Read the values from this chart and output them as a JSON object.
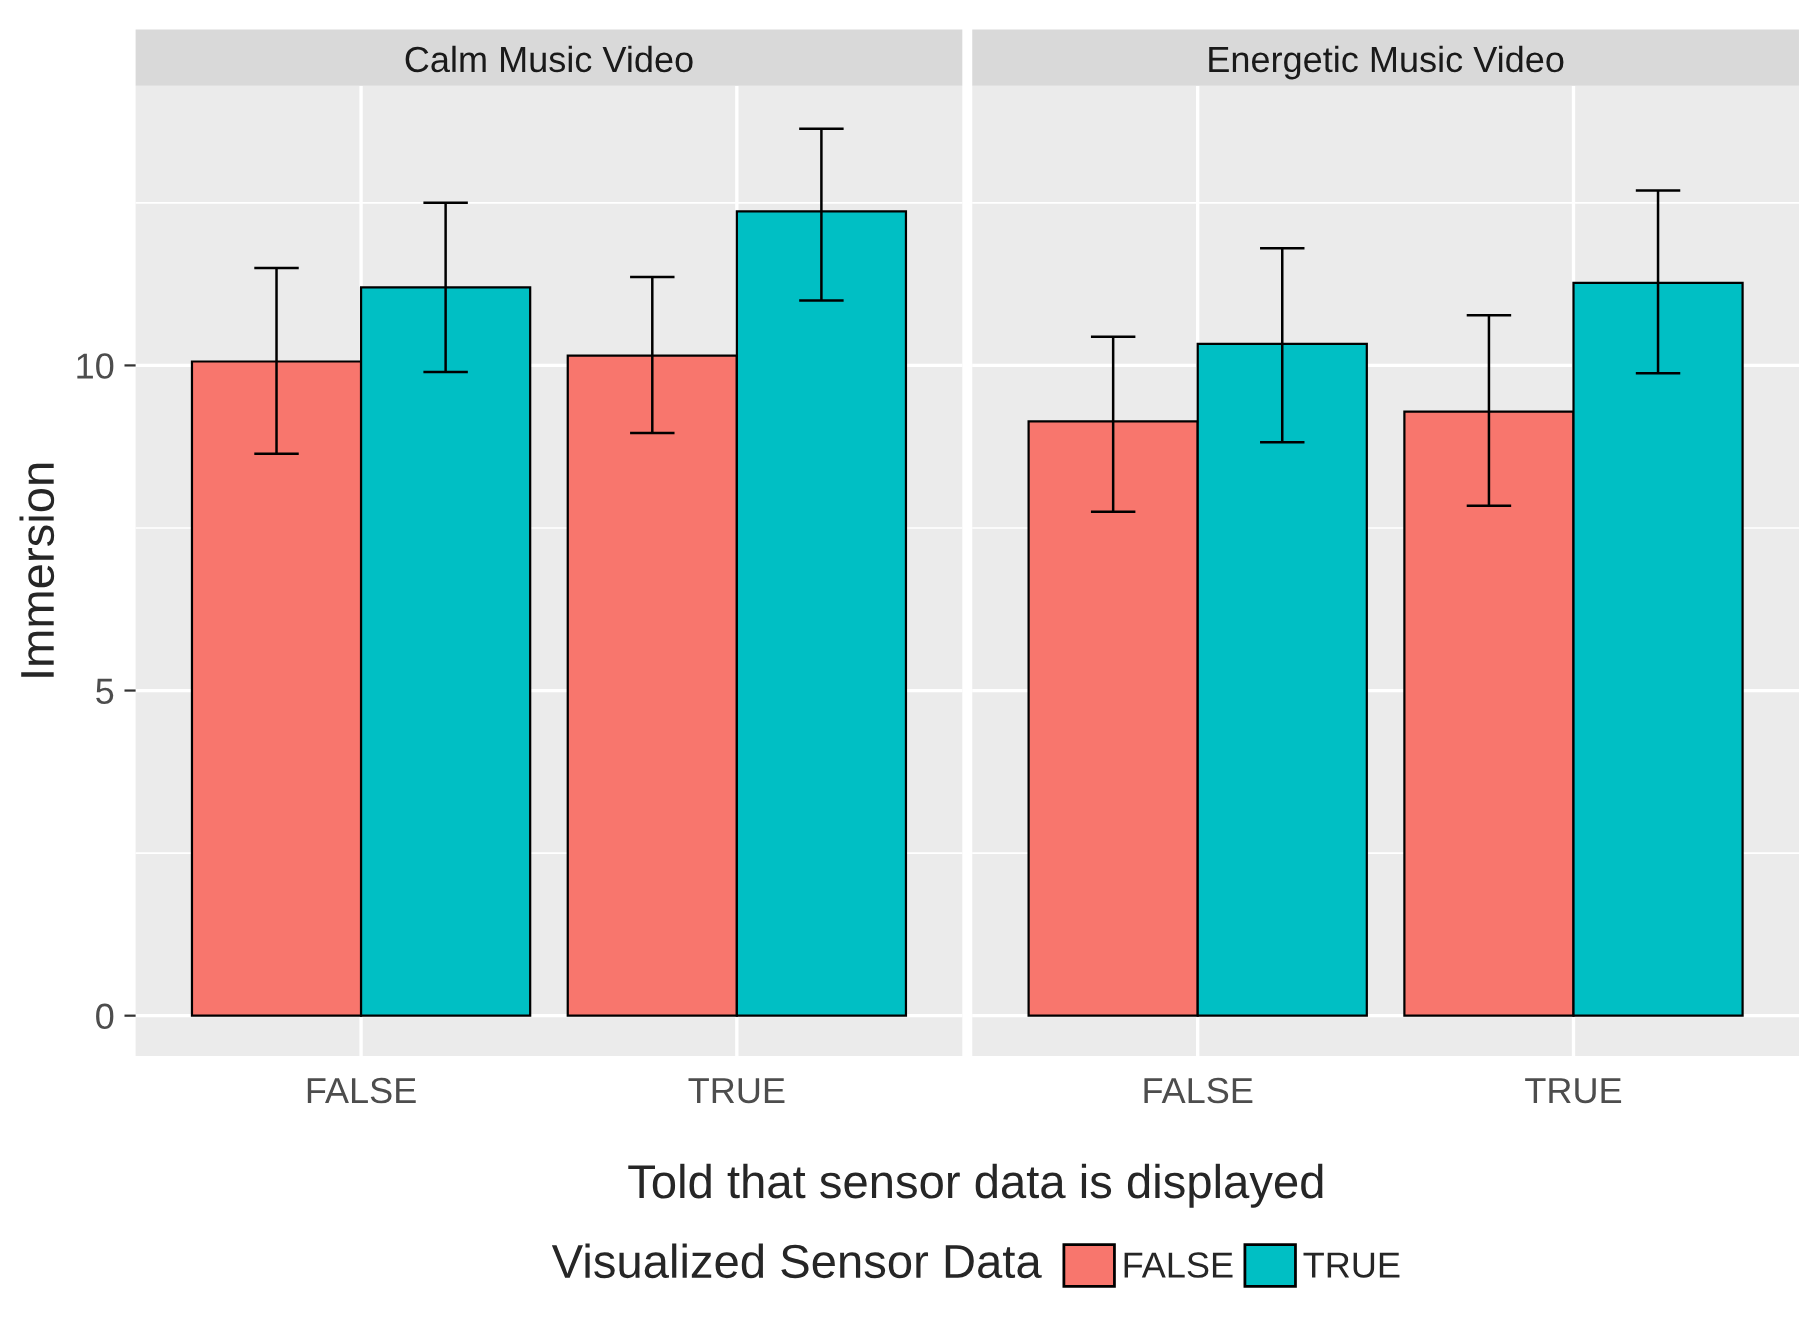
{
  "chart_data": [
    {
      "type": "bar",
      "title": "Calm Music Video",
      "xlabel": "Told that sensor data is displayed",
      "ylabel": "Immersion",
      "legend_title": "Visualized Sensor Data",
      "legend": "bottom",
      "grid": true,
      "categories": [
        "FALSE",
        "TRUE"
      ],
      "ylim": [
        -0.62,
        14.3
      ],
      "yticks": [
        0,
        5,
        10
      ],
      "series": [
        {
          "name": "FALSE",
          "color": "#f8766d",
          "values": [
            10.06,
            10.15
          ],
          "errors": [
            [
              8.64,
              11.5
            ],
            [
              8.96,
              11.36
            ]
          ]
        },
        {
          "name": "TRUE",
          "color": "#00bfc4",
          "values": [
            11.2,
            12.37
          ],
          "errors": [
            [
              9.9,
              12.5
            ],
            [
              11.0,
              13.64
            ]
          ]
        }
      ]
    },
    {
      "type": "bar",
      "title": "Energetic Music Video",
      "grid": true,
      "tick_labels": "x",
      "categories": [
        "FALSE",
        "TRUE"
      ],
      "ylim": [
        -0.62,
        14.3
      ],
      "yticks": [
        0,
        5,
        10
      ],
      "series": [
        {
          "color": "#f8766d",
          "values": [
            9.14,
            9.29
          ],
          "errors": [
            [
              7.75,
              10.44
            ],
            [
              7.84,
              10.77
            ]
          ]
        },
        {
          "color": "#00bfc4",
          "values": [
            10.33,
            11.27
          ],
          "errors": [
            [
              8.82,
              11.8
            ],
            [
              9.88,
              12.69
            ]
          ]
        }
      ]
    }
  ]
}
